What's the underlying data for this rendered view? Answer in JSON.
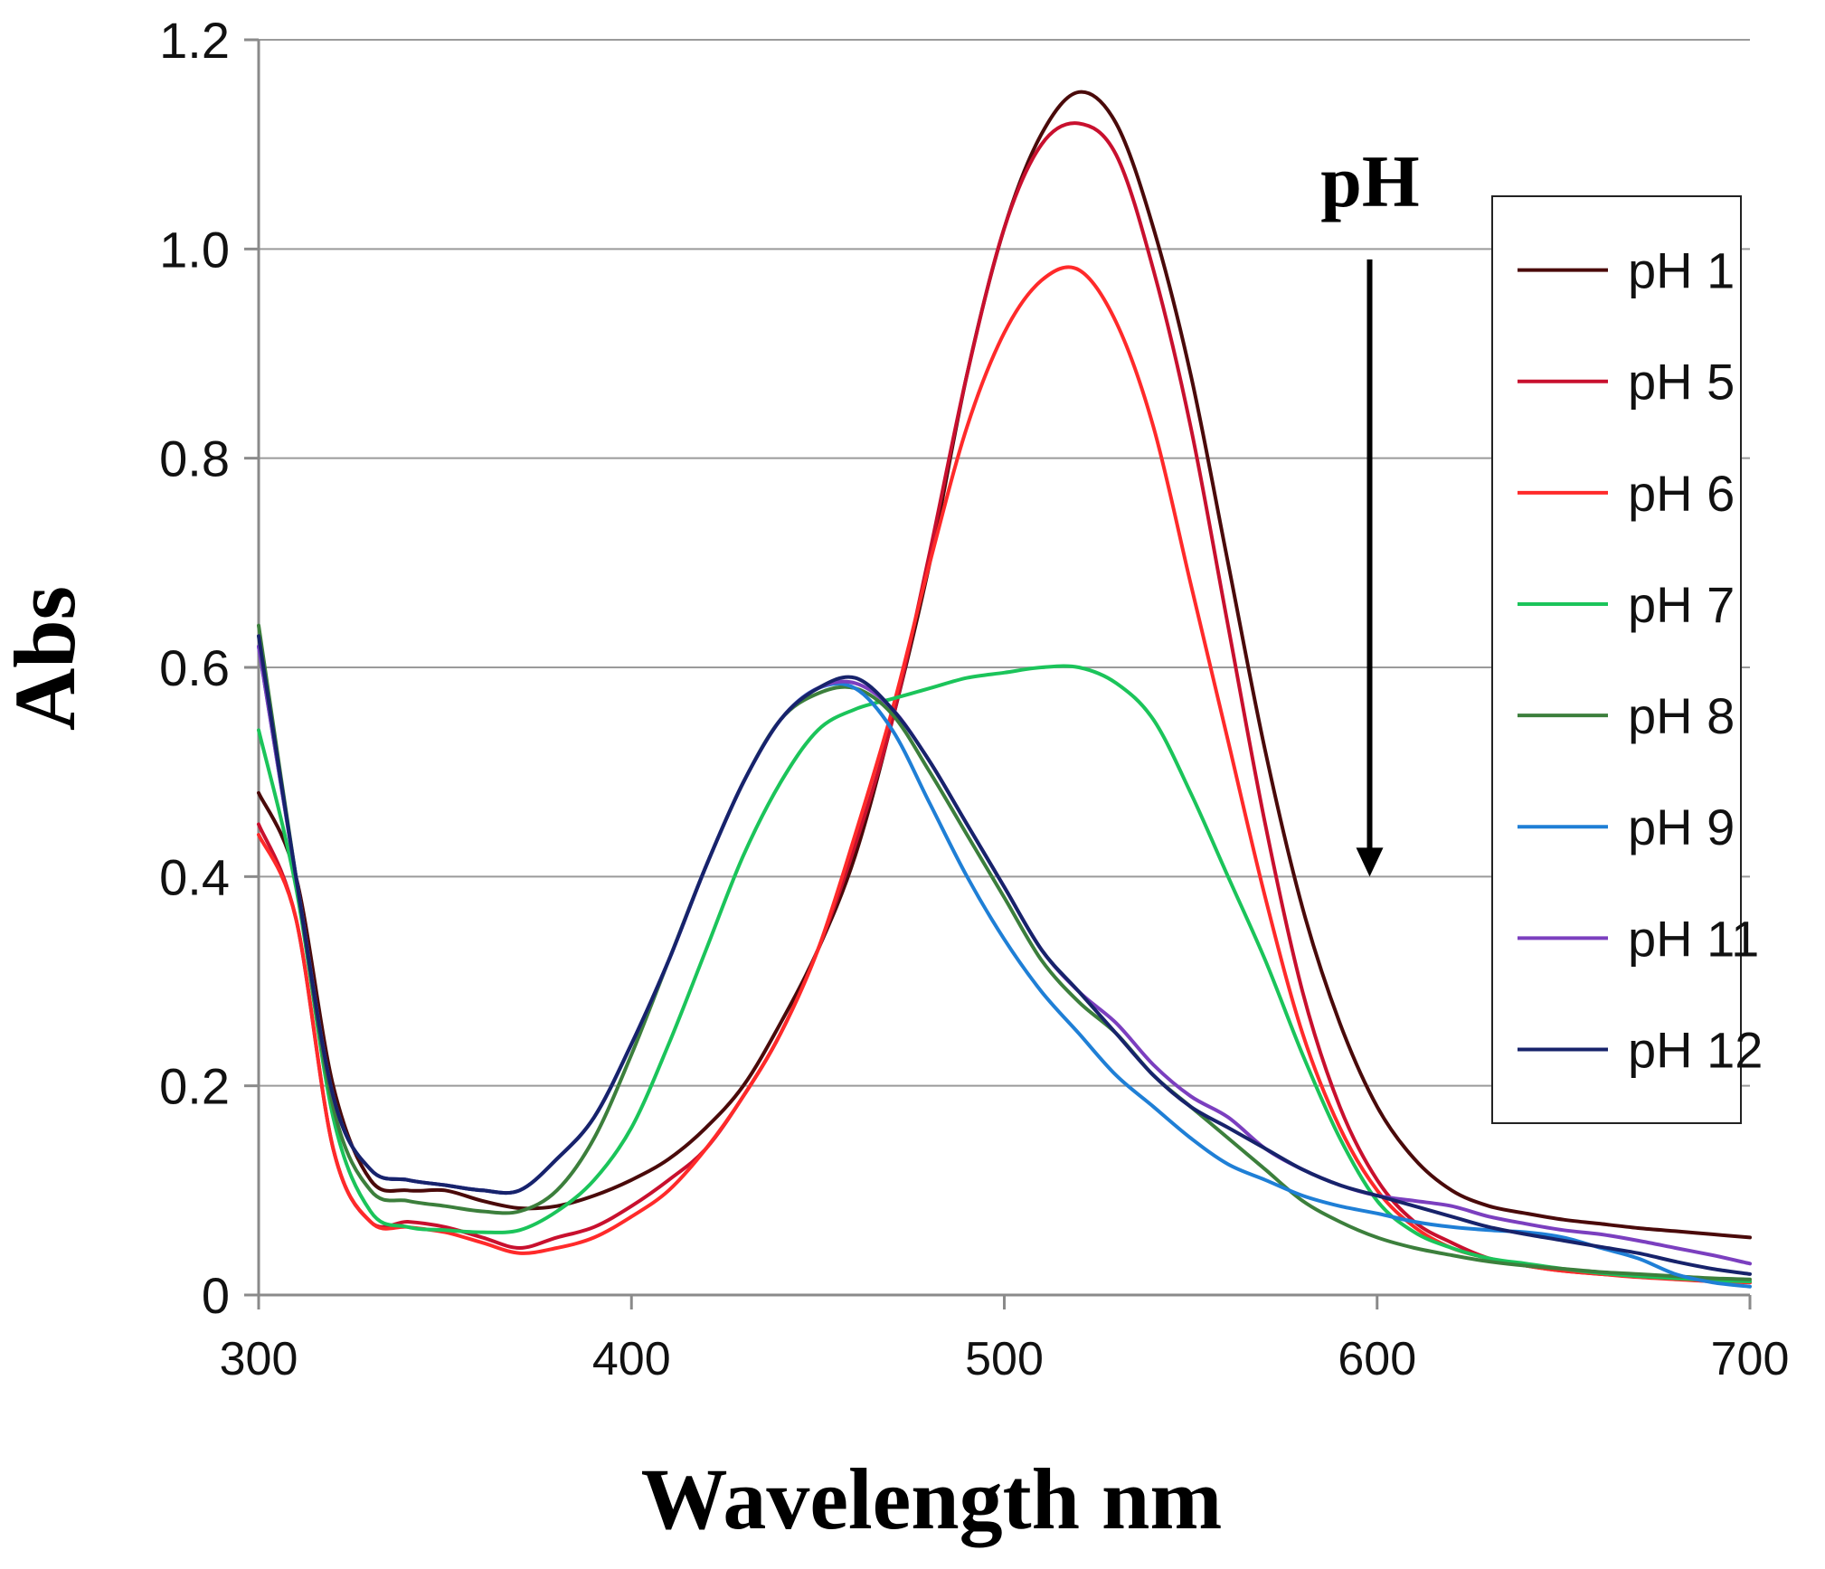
{
  "chart_data": {
    "type": "line",
    "title": "",
    "xlabel": "Wavelength nm",
    "ylabel": "Abs",
    "xlim": [
      300,
      700
    ],
    "ylim": [
      0,
      1.2
    ],
    "xticks": [
      300,
      400,
      500,
      600,
      700
    ],
    "yticks": [
      0,
      0.2,
      0.4,
      0.6,
      0.8,
      1.0,
      1.2
    ],
    "xtick_labels": [
      "300",
      "400",
      "500",
      "600",
      "700"
    ],
    "ytick_labels": [
      "0",
      "0.2",
      "0.4",
      "0.6",
      "0.8",
      "1.0",
      "1.2"
    ],
    "grid": "horizontal",
    "legend_position": "right",
    "annotation": {
      "text": "pH",
      "arrow_x": 598,
      "arrow_from_y": 0.99,
      "arrow_to_y": 0.4
    },
    "series": [
      {
        "name": "pH 1",
        "color": "#4a0a0a",
        "x": [
          300,
          310,
          320,
          330,
          340,
          350,
          360,
          370,
          380,
          390,
          400,
          410,
          420,
          430,
          440,
          450,
          460,
          470,
          480,
          490,
          500,
          510,
          520,
          530,
          540,
          550,
          560,
          570,
          580,
          590,
          600,
          610,
          620,
          630,
          640,
          650,
          660,
          670,
          680,
          690,
          700
        ],
        "y": [
          0.48,
          0.4,
          0.2,
          0.11,
          0.1,
          0.1,
          0.09,
          0.083,
          0.085,
          0.095,
          0.11,
          0.13,
          0.16,
          0.2,
          0.26,
          0.33,
          0.42,
          0.55,
          0.7,
          0.88,
          1.02,
          1.11,
          1.15,
          1.12,
          1.02,
          0.88,
          0.7,
          0.52,
          0.37,
          0.26,
          0.18,
          0.13,
          0.1,
          0.085,
          0.078,
          0.072,
          0.068,
          0.064,
          0.061,
          0.058,
          0.055
        ]
      },
      {
        "name": "pH 5",
        "color": "#c8102e",
        "x": [
          300,
          310,
          320,
          330,
          340,
          350,
          360,
          370,
          380,
          390,
          400,
          410,
          420,
          430,
          440,
          450,
          460,
          470,
          480,
          490,
          500,
          510,
          520,
          530,
          540,
          550,
          560,
          570,
          580,
          590,
          600,
          610,
          620,
          630,
          640,
          650,
          660,
          670,
          680,
          690,
          700
        ],
        "y": [
          0.45,
          0.36,
          0.14,
          0.07,
          0.07,
          0.065,
          0.055,
          0.045,
          0.055,
          0.065,
          0.085,
          0.11,
          0.14,
          0.19,
          0.25,
          0.33,
          0.43,
          0.55,
          0.71,
          0.88,
          1.02,
          1.1,
          1.12,
          1.09,
          0.98,
          0.83,
          0.64,
          0.45,
          0.29,
          0.18,
          0.11,
          0.07,
          0.05,
          0.035,
          0.028,
          0.023,
          0.02,
          0.018,
          0.016,
          0.014,
          0.012
        ]
      },
      {
        "name": "pH 6",
        "color": "#ff2a2a",
        "x": [
          300,
          310,
          320,
          330,
          340,
          350,
          360,
          370,
          380,
          390,
          400,
          410,
          420,
          430,
          440,
          450,
          460,
          470,
          480,
          490,
          500,
          510,
          520,
          530,
          540,
          550,
          560,
          570,
          580,
          590,
          600,
          610,
          620,
          630,
          640,
          650,
          660,
          670,
          680,
          690,
          700
        ],
        "y": [
          0.44,
          0.36,
          0.14,
          0.07,
          0.065,
          0.06,
          0.05,
          0.04,
          0.045,
          0.055,
          0.075,
          0.1,
          0.14,
          0.19,
          0.25,
          0.33,
          0.44,
          0.56,
          0.7,
          0.83,
          0.92,
          0.97,
          0.98,
          0.93,
          0.83,
          0.68,
          0.53,
          0.38,
          0.25,
          0.16,
          0.1,
          0.065,
          0.045,
          0.035,
          0.028,
          0.023,
          0.02,
          0.017,
          0.015,
          0.013,
          0.012
        ]
      },
      {
        "name": "pH 7",
        "color": "#1bc45a",
        "x": [
          300,
          310,
          320,
          330,
          340,
          350,
          360,
          370,
          380,
          390,
          400,
          410,
          420,
          430,
          440,
          450,
          460,
          470,
          480,
          490,
          500,
          510,
          520,
          530,
          540,
          550,
          560,
          570,
          580,
          590,
          600,
          610,
          620,
          630,
          640,
          650,
          660,
          670,
          680,
          690,
          700
        ],
        "y": [
          0.54,
          0.39,
          0.17,
          0.08,
          0.065,
          0.062,
          0.06,
          0.062,
          0.08,
          0.11,
          0.16,
          0.24,
          0.33,
          0.42,
          0.49,
          0.54,
          0.56,
          0.57,
          0.58,
          0.59,
          0.595,
          0.6,
          0.6,
          0.585,
          0.55,
          0.48,
          0.4,
          0.32,
          0.23,
          0.15,
          0.09,
          0.06,
          0.045,
          0.035,
          0.03,
          0.025,
          0.021,
          0.018,
          0.016,
          0.014,
          0.013
        ]
      },
      {
        "name": "pH 8",
        "color": "#3c7f3c",
        "x": [
          300,
          310,
          320,
          330,
          340,
          350,
          360,
          370,
          380,
          390,
          400,
          410,
          420,
          430,
          440,
          450,
          460,
          470,
          480,
          490,
          500,
          510,
          520,
          530,
          540,
          550,
          560,
          570,
          580,
          590,
          600,
          610,
          620,
          630,
          640,
          650,
          660,
          670,
          680,
          690,
          700
        ],
        "y": [
          0.64,
          0.4,
          0.18,
          0.1,
          0.09,
          0.085,
          0.08,
          0.08,
          0.1,
          0.15,
          0.23,
          0.32,
          0.41,
          0.49,
          0.55,
          0.575,
          0.58,
          0.555,
          0.5,
          0.44,
          0.38,
          0.32,
          0.28,
          0.25,
          0.21,
          0.18,
          0.15,
          0.12,
          0.09,
          0.07,
          0.055,
          0.045,
          0.038,
          0.032,
          0.028,
          0.025,
          0.022,
          0.02,
          0.018,
          0.016,
          0.015
        ]
      },
      {
        "name": "pH 9",
        "color": "#1f7fd6",
        "x": [
          300,
          310,
          320,
          330,
          340,
          350,
          360,
          370,
          380,
          390,
          400,
          410,
          420,
          430,
          440,
          450,
          460,
          470,
          480,
          490,
          500,
          510,
          520,
          530,
          540,
          550,
          560,
          570,
          580,
          590,
          600,
          610,
          620,
          630,
          640,
          650,
          660,
          670,
          680,
          690,
          700
        ],
        "y": [
          0.62,
          0.4,
          0.19,
          0.12,
          0.11,
          0.105,
          0.1,
          0.1,
          0.13,
          0.17,
          0.24,
          0.32,
          0.41,
          0.49,
          0.55,
          0.58,
          0.58,
          0.54,
          0.47,
          0.4,
          0.34,
          0.29,
          0.25,
          0.21,
          0.18,
          0.15,
          0.125,
          0.11,
          0.095,
          0.085,
          0.078,
          0.07,
          0.065,
          0.062,
          0.06,
          0.055,
          0.045,
          0.035,
          0.02,
          0.012,
          0.008
        ]
      },
      {
        "name": "pH 11",
        "color": "#7b3fbf",
        "x": [
          300,
          310,
          320,
          330,
          340,
          350,
          360,
          370,
          380,
          390,
          400,
          410,
          420,
          430,
          440,
          450,
          460,
          470,
          480,
          490,
          500,
          510,
          520,
          530,
          540,
          550,
          560,
          570,
          580,
          590,
          600,
          610,
          620,
          630,
          640,
          650,
          660,
          670,
          680,
          690,
          700
        ],
        "y": [
          0.62,
          0.4,
          0.19,
          0.12,
          0.11,
          0.105,
          0.1,
          0.1,
          0.13,
          0.17,
          0.24,
          0.32,
          0.41,
          0.49,
          0.55,
          0.58,
          0.585,
          0.56,
          0.51,
          0.45,
          0.39,
          0.33,
          0.29,
          0.26,
          0.22,
          0.19,
          0.17,
          0.14,
          0.12,
          0.105,
          0.095,
          0.09,
          0.085,
          0.075,
          0.068,
          0.062,
          0.058,
          0.052,
          0.045,
          0.038,
          0.03
        ]
      },
      {
        "name": "pH 12",
        "color": "#17236b",
        "x": [
          300,
          310,
          320,
          330,
          340,
          350,
          360,
          370,
          380,
          390,
          400,
          410,
          420,
          430,
          440,
          450,
          460,
          470,
          480,
          490,
          500,
          510,
          520,
          530,
          540,
          550,
          560,
          570,
          580,
          590,
          600,
          610,
          620,
          630,
          640,
          650,
          660,
          670,
          680,
          690,
          700
        ],
        "y": [
          0.63,
          0.4,
          0.19,
          0.12,
          0.11,
          0.105,
          0.1,
          0.1,
          0.13,
          0.17,
          0.24,
          0.32,
          0.41,
          0.49,
          0.55,
          0.58,
          0.59,
          0.56,
          0.51,
          0.45,
          0.39,
          0.33,
          0.29,
          0.25,
          0.21,
          0.18,
          0.16,
          0.14,
          0.12,
          0.105,
          0.095,
          0.085,
          0.075,
          0.065,
          0.058,
          0.052,
          0.046,
          0.04,
          0.032,
          0.025,
          0.02
        ]
      }
    ]
  }
}
